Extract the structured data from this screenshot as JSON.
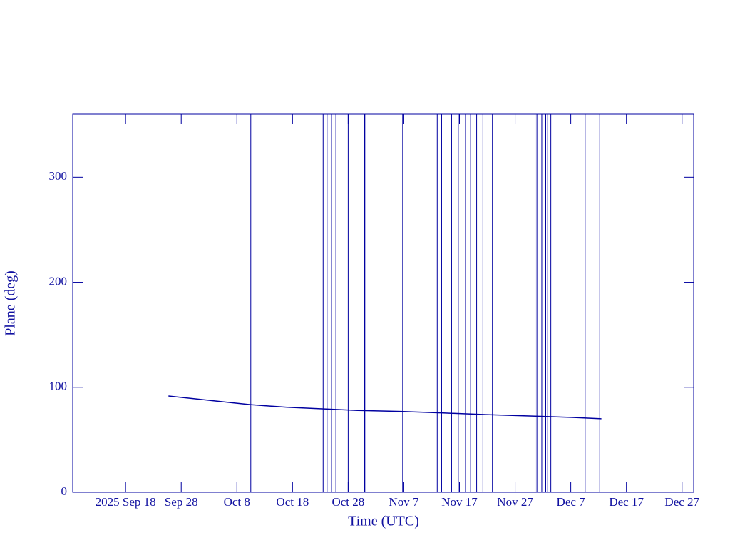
{
  "chart_data": {
    "type": "line",
    "x_label": "Time (UTC)",
    "y_label": "Plane (deg)",
    "color": "#0000a0",
    "xlim": [
      "2025-09-08T12:00Z",
      "2025-12-29T02:00Z"
    ],
    "xticks": [
      {
        "value": "2025-09-18T00:00Z",
        "label": "2025 Sep 18"
      },
      {
        "value": "2025-09-28T00:00Z",
        "label": "Sep 28"
      },
      {
        "value": "2025-10-08T00:00Z",
        "label": "Oct 8"
      },
      {
        "value": "2025-10-18T00:00Z",
        "label": "Oct 18"
      },
      {
        "value": "2025-10-28T00:00Z",
        "label": "Oct 28"
      },
      {
        "value": "2025-11-07T00:00Z",
        "label": "Nov 7"
      },
      {
        "value": "2025-11-17T00:00Z",
        "label": "Nov 17"
      },
      {
        "value": "2025-11-27T00:00Z",
        "label": "Nov 27"
      },
      {
        "value": "2025-12-07T00:00Z",
        "label": "Dec 7"
      },
      {
        "value": "2025-12-17T00:00Z",
        "label": "Dec 17"
      },
      {
        "value": "2025-12-27T00:00Z",
        "label": "Dec 27"
      }
    ],
    "ylim": [
      0,
      360
    ],
    "yticks": [
      0,
      100,
      200,
      300
    ],
    "x": [
      "2025-09-25T17:00Z",
      "2025-10-04T00:00Z",
      "2025-10-10T10:00Z",
      "2025-10-17T00:00Z",
      "2025-10-23T08:00Z",
      "2025-10-29T17:00Z",
      "2025-11-06T10:00Z",
      "2025-11-14T02:00Z",
      "2025-11-21T22:00Z",
      "2025-11-29T14:00Z",
      "2025-12-07T07:00Z",
      "2025-12-12T12:00Z"
    ],
    "values": [
      91.7,
      87,
      83.5,
      81,
      79.5,
      78,
      77,
      75.5,
      74,
      72.7,
      71.3,
      70
    ],
    "event_times": [
      "2025-10-10T12:00Z",
      "2025-10-23T12:00Z",
      "2025-10-24T05:00Z",
      "2025-10-25T00:00Z",
      "2025-10-25T19:00Z",
      "2025-10-28T00:00Z",
      "2025-10-30T22:00Z",
      "2025-10-31T00:00Z",
      "2025-11-06T19:00Z",
      "2025-11-13T00:00Z",
      "2025-11-13T19:00Z",
      "2025-11-15T14:00Z",
      "2025-11-16T19:00Z",
      "2025-11-18T02:00Z",
      "2025-11-19T00:00Z",
      "2025-11-20T02:00Z",
      "2025-11-21T05:00Z",
      "2025-11-22T22:00Z",
      "2025-11-30T14:00Z",
      "2025-11-30T22:00Z",
      "2025-12-01T19:00Z",
      "2025-12-02T12:00Z",
      "2025-12-02T19:00Z",
      "2025-12-03T10:00Z",
      "2025-12-09T14:00Z",
      "2025-12-12T05:00Z"
    ]
  }
}
